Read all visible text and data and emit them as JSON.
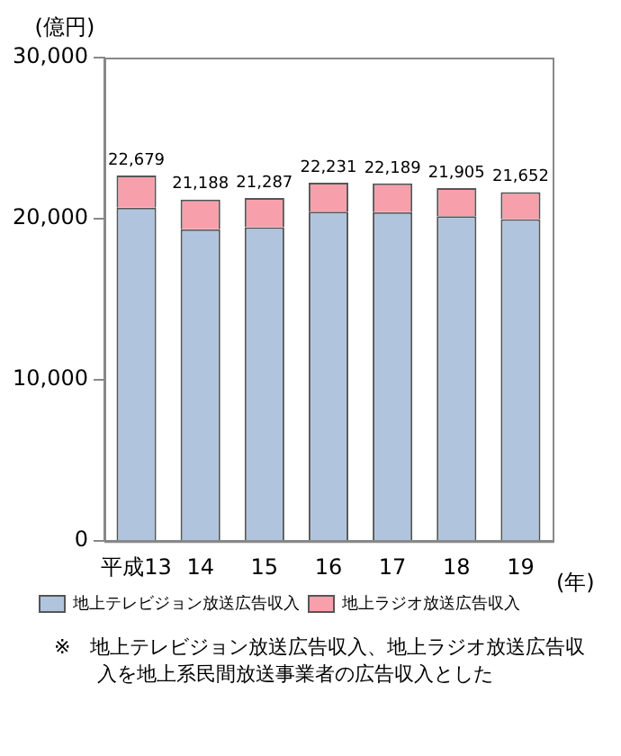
{
  "chart_data": {
    "type": "bar",
    "stacked": true,
    "ylabel": "(億円)",
    "xlabel": "(年)",
    "categories": [
      "平成13",
      "14",
      "15",
      "16",
      "17",
      "18",
      "19"
    ],
    "series": [
      {
        "name": "地上テレビジョン放送広告収入",
        "color": "#b0c4de",
        "values": [
          20681,
          19351,
          19480,
          20436,
          20411,
          20161,
          19981
        ]
      },
      {
        "name": "地上ラジオ放送広告収入",
        "color": "#f7a0ac",
        "values": [
          1998,
          1837,
          1807,
          1795,
          1778,
          1744,
          1671
        ]
      }
    ],
    "totals": [
      "22,679",
      "21,188",
      "21,287",
      "22,231",
      "22,189",
      "21,905",
      "21,652"
    ],
    "ylim": [
      0,
      30000
    ],
    "yticks": [
      0,
      {
        "value": 10000,
        "label": "10,000"
      },
      {
        "value": 20000,
        "label": "20,000"
      },
      {
        "value": 30000,
        "label": "30,000"
      }
    ],
    "grid": false,
    "legend": "bottom",
    "annotations": [
      "※　地上テレビジョン放送広告収入、地上ラジオ放送広告収入を地上系民間放送事業者の広告収入とした"
    ]
  }
}
